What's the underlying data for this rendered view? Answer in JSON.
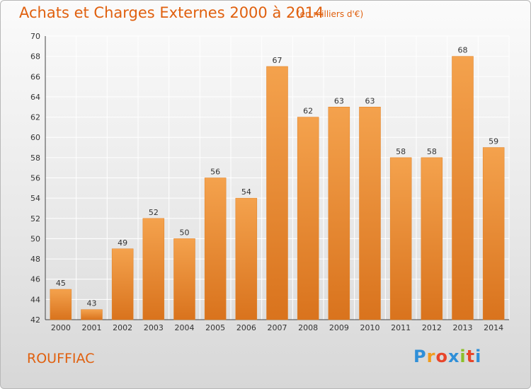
{
  "chart_data": {
    "type": "bar",
    "title": "Achats et Charges Externes 2000 à 2014",
    "subtitle": "(en milliers d'€)",
    "categories": [
      "2000",
      "2001",
      "2002",
      "2003",
      "2004",
      "2005",
      "2006",
      "2007",
      "2008",
      "2009",
      "2010",
      "2011",
      "2012",
      "2013",
      "2014"
    ],
    "values": [
      45,
      43,
      49,
      52,
      50,
      56,
      54,
      67,
      62,
      63,
      63,
      58,
      58,
      68,
      59
    ],
    "ylim": [
      42,
      70
    ],
    "yticks": [
      42,
      44,
      46,
      48,
      50,
      52,
      54,
      56,
      58,
      60,
      62,
      64,
      66,
      68,
      70
    ],
    "grid": true,
    "bar_color": "#f4a24d",
    "bar_color_dark": "#d9731d"
  },
  "commune": "ROUFFIAC",
  "logo": {
    "letters": [
      "P",
      "r",
      "o",
      "x",
      "i",
      "t",
      "i"
    ],
    "colors": [
      "#2f8fd8",
      "#f29b1c",
      "#e8452a",
      "#2f8fd8",
      "#8cbf2a",
      "#e8452a",
      "#2f8fd8"
    ]
  }
}
